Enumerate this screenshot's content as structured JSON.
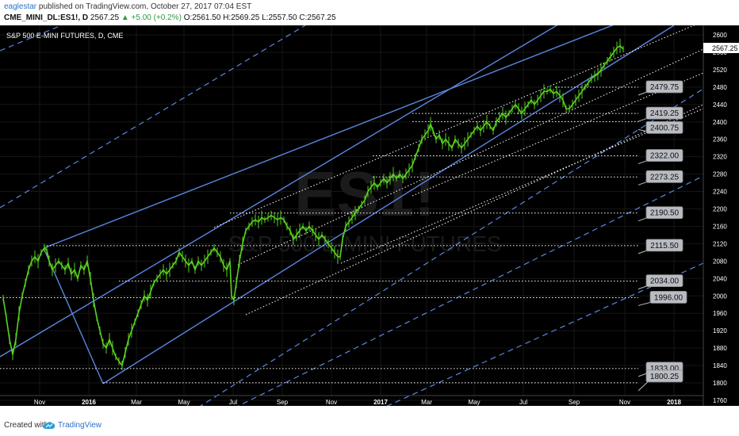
{
  "header": {
    "author": "eaglestar",
    "published": "published on TradingView.com, October 27, 2017 07:04 EST",
    "symbol": "CME_MINI_DL:ES1!, D",
    "last": "2567.25",
    "change": "+5.00 (+0.2%)",
    "open": "O:2561.50",
    "high": "H:2569.25",
    "low": "L:2557.50",
    "close": "C:2567.25"
  },
  "footer": {
    "created": "Created with",
    "brand": "TradingView"
  },
  "chart_data": {
    "type": "line",
    "title": "S&P 500 E-MINI FUTURES, D, CME",
    "watermark_symbol": "ES1!",
    "watermark_name": "S&P 500 E-MINI FUTURES",
    "x_ticks": [
      "Nov",
      "2016",
      "Mar",
      "May",
      "Jul",
      "Sep",
      "Nov",
      "2017",
      "Mar",
      "May",
      "Jul",
      "Sep",
      "Nov",
      "2018"
    ],
    "y_ticks": [
      1760,
      1800,
      1840,
      1880,
      1920,
      1960,
      2000,
      2040,
      2080,
      2120,
      2160,
      2200,
      2240,
      2280,
      2320,
      2360,
      2400,
      2440,
      2480,
      2520,
      2560,
      2600
    ],
    "ylim": [
      1760,
      2620
    ],
    "last_price_label": "2567.25",
    "levels": [
      2479.75,
      2419.25,
      2400.75,
      2322.0,
      2273.25,
      2190.5,
      2115.5,
      2034.0,
      1996.0,
      1833.0,
      1800.25
    ],
    "level_labels": [
      "2479.75",
      "2419.25",
      "2400.75",
      "2322.00",
      "2273.25",
      "2190.50",
      "2115.50",
      "2034.00",
      "1996.00",
      "1833.00",
      "1800.25"
    ],
    "price_path": [
      [
        0,
        1995
      ],
      [
        4,
        1950
      ],
      [
        8,
        1900
      ],
      [
        12,
        1865
      ],
      [
        16,
        1900
      ],
      [
        20,
        1960
      ],
      [
        24,
        2000
      ],
      [
        28,
        2030
      ],
      [
        32,
        2060
      ],
      [
        36,
        2080
      ],
      [
        40,
        2090
      ],
      [
        44,
        2080
      ],
      [
        48,
        2100
      ],
      [
        52,
        2110
      ],
      [
        55,
        2105
      ],
      [
        58,
        2080
      ],
      [
        62,
        2060
      ],
      [
        66,
        2070
      ],
      [
        70,
        2080
      ],
      [
        74,
        2070
      ],
      [
        78,
        2060
      ],
      [
        82,
        2075
      ],
      [
        86,
        2050
      ],
      [
        90,
        2060
      ],
      [
        94,
        2040
      ],
      [
        98,
        2070
      ],
      [
        102,
        2060
      ],
      [
        106,
        2080
      ],
      [
        110,
        2040
      ],
      [
        114,
        1990
      ],
      [
        118,
        1950
      ],
      [
        122,
        1920
      ],
      [
        126,
        1890
      ],
      [
        130,
        1880
      ],
      [
        134,
        1900
      ],
      [
        138,
        1880
      ],
      [
        142,
        1860
      ],
      [
        146,
        1850
      ],
      [
        150,
        1840
      ],
      [
        154,
        1870
      ],
      [
        158,
        1900
      ],
      [
        162,
        1920
      ],
      [
        166,
        1940
      ],
      [
        170,
        1960
      ],
      [
        174,
        1980
      ],
      [
        178,
        2000
      ],
      [
        182,
        1990
      ],
      [
        186,
        2010
      ],
      [
        190,
        2030
      ],
      [
        194,
        2040
      ],
      [
        198,
        2050
      ],
      [
        202,
        2060
      ],
      [
        206,
        2050
      ],
      [
        210,
        2060
      ],
      [
        214,
        2070
      ],
      [
        218,
        2080
      ],
      [
        222,
        2100
      ],
      [
        226,
        2090
      ],
      [
        230,
        2080
      ],
      [
        234,
        2070
      ],
      [
        238,
        2080
      ],
      [
        242,
        2060
      ],
      [
        246,
        2080
      ],
      [
        250,
        2070
      ],
      [
        254,
        2080
      ],
      [
        258,
        2090
      ],
      [
        262,
        2100
      ],
      [
        266,
        2110
      ],
      [
        270,
        2100
      ],
      [
        274,
        2090
      ],
      [
        278,
        2070
      ],
      [
        282,
        2060
      ],
      [
        286,
        2080
      ],
      [
        288,
        2000
      ],
      [
        291,
        1990
      ],
      [
        294,
        2030
      ],
      [
        298,
        2080
      ],
      [
        302,
        2120
      ],
      [
        306,
        2150
      ],
      [
        310,
        2160
      ],
      [
        314,
        2170
      ],
      [
        318,
        2175
      ],
      [
        322,
        2170
      ],
      [
        326,
        2180
      ],
      [
        330,
        2175
      ],
      [
        334,
        2180
      ],
      [
        338,
        2185
      ],
      [
        342,
        2180
      ],
      [
        346,
        2175
      ],
      [
        350,
        2180
      ],
      [
        354,
        2175
      ],
      [
        358,
        2160
      ],
      [
        362,
        2150
      ],
      [
        366,
        2130
      ],
      [
        370,
        2140
      ],
      [
        374,
        2150
      ],
      [
        378,
        2160
      ],
      [
        382,
        2150
      ],
      [
        386,
        2160
      ],
      [
        390,
        2150
      ],
      [
        394,
        2140
      ],
      [
        398,
        2130
      ],
      [
        402,
        2140
      ],
      [
        406,
        2130
      ],
      [
        410,
        2120
      ],
      [
        414,
        2110
      ],
      [
        418,
        2100
      ],
      [
        422,
        2090
      ],
      [
        425,
        2090
      ],
      [
        428,
        2130
      ],
      [
        432,
        2160
      ],
      [
        436,
        2170
      ],
      [
        440,
        2180
      ],
      [
        444,
        2190
      ],
      [
        448,
        2200
      ],
      [
        452,
        2210
      ],
      [
        456,
        2220
      ],
      [
        460,
        2240
      ],
      [
        464,
        2250
      ],
      [
        468,
        2260
      ],
      [
        472,
        2250
      ],
      [
        476,
        2260
      ],
      [
        480,
        2270
      ],
      [
        484,
        2260
      ],
      [
        488,
        2270
      ],
      [
        492,
        2280
      ],
      [
        496,
        2270
      ],
      [
        500,
        2280
      ],
      [
        504,
        2270
      ],
      [
        508,
        2280
      ],
      [
        512,
        2290
      ],
      [
        516,
        2300
      ],
      [
        520,
        2320
      ],
      [
        524,
        2340
      ],
      [
        528,
        2360
      ],
      [
        532,
        2370
      ],
      [
        536,
        2380
      ],
      [
        539,
        2395
      ],
      [
        542,
        2380
      ],
      [
        546,
        2360
      ],
      [
        550,
        2370
      ],
      [
        554,
        2350
      ],
      [
        558,
        2360
      ],
      [
        562,
        2350
      ],
      [
        566,
        2340
      ],
      [
        570,
        2360
      ],
      [
        574,
        2350
      ],
      [
        578,
        2340
      ],
      [
        582,
        2350
      ],
      [
        586,
        2360
      ],
      [
        590,
        2370
      ],
      [
        594,
        2380
      ],
      [
        598,
        2390
      ],
      [
        602,
        2380
      ],
      [
        606,
        2390
      ],
      [
        610,
        2400
      ],
      [
        614,
        2390
      ],
      [
        618,
        2380
      ],
      [
        622,
        2400
      ],
      [
        626,
        2410
      ],
      [
        630,
        2420
      ],
      [
        634,
        2410
      ],
      [
        638,
        2420
      ],
      [
        642,
        2430
      ],
      [
        646,
        2440
      ],
      [
        650,
        2430
      ],
      [
        654,
        2420
      ],
      [
        658,
        2430
      ],
      [
        662,
        2440
      ],
      [
        666,
        2450
      ],
      [
        670,
        2440
      ],
      [
        674,
        2450
      ],
      [
        678,
        2460
      ],
      [
        682,
        2470
      ],
      [
        686,
        2470
      ],
      [
        690,
        2475
      ],
      [
        694,
        2465
      ],
      [
        698,
        2470
      ],
      [
        702,
        2460
      ],
      [
        706,
        2450
      ],
      [
        710,
        2430
      ],
      [
        714,
        2430
      ],
      [
        718,
        2440
      ],
      [
        722,
        2450
      ],
      [
        726,
        2460
      ],
      [
        730,
        2470
      ],
      [
        734,
        2480
      ],
      [
        738,
        2490
      ],
      [
        742,
        2500
      ],
      [
        746,
        2505
      ],
      [
        750,
        2510
      ],
      [
        754,
        2520
      ],
      [
        758,
        2530
      ],
      [
        762,
        2540
      ],
      [
        766,
        2550
      ],
      [
        770,
        2560
      ],
      [
        774,
        2570
      ],
      [
        778,
        2575
      ],
      [
        782,
        2567
      ]
    ]
  },
  "colors": {
    "background": "#000000",
    "price": "#59d21e",
    "channel": "#5b87e0",
    "dotted": "#ffffff",
    "label_fill": "#b9bcc2",
    "axis_text": "#ffffff"
  }
}
